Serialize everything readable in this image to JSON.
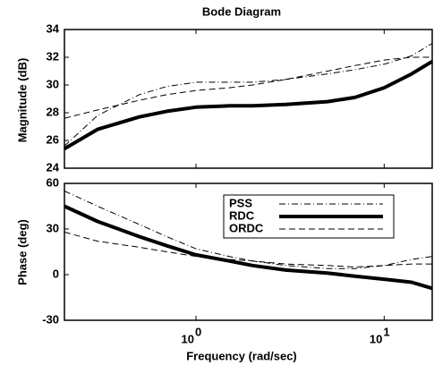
{
  "chart_data": [
    {
      "type": "line",
      "title": "Bode Diagram",
      "ylabel": "Magnitude (dB)",
      "xscale": "log",
      "x": [
        0.2,
        0.3,
        0.5,
        0.7,
        1,
        1.5,
        2,
        3,
        5,
        7,
        10,
        14,
        18
      ],
      "xlim": [
        0.2,
        18
      ],
      "xticks": [
        1,
        10
      ],
      "ylim": [
        24,
        34
      ],
      "yticks": [
        24,
        26,
        28,
        30,
        32,
        34
      ],
      "series": [
        {
          "name": "PSS",
          "color": "#000000",
          "style": "dash-dot",
          "values": [
            25.6,
            27.8,
            29.3,
            29.9,
            30.2,
            30.2,
            30.2,
            30.4,
            30.8,
            31.1,
            31.5,
            32.1,
            33.0
          ]
        },
        {
          "name": "RDC",
          "color": "#000000",
          "style": "solid-thick",
          "values": [
            25.4,
            26.8,
            27.7,
            28.1,
            28.4,
            28.5,
            28.5,
            28.6,
            28.8,
            29.1,
            29.8,
            30.8,
            31.7
          ]
        },
        {
          "name": "ORDC",
          "color": "#000000",
          "style": "dashed",
          "values": [
            27.6,
            28.2,
            28.9,
            29.3,
            29.6,
            29.8,
            30.0,
            30.4,
            31.0,
            31.4,
            31.8,
            32.0,
            32.0
          ]
        }
      ]
    },
    {
      "type": "line",
      "ylabel": "Phase (deg)",
      "xlabel": "Frequency (rad/sec)",
      "xscale": "log",
      "x": [
        0.2,
        0.3,
        0.5,
        0.7,
        1,
        1.5,
        2,
        3,
        5,
        7,
        10,
        14,
        18
      ],
      "xlim": [
        0.2,
        18
      ],
      "xticks": [
        {
          "value": 1,
          "label": "10",
          "exponent": "0"
        },
        {
          "value": 10,
          "label": "10",
          "exponent": "1"
        }
      ],
      "ylim": [
        -30,
        60
      ],
      "yticks": [
        -30,
        0,
        30,
        60
      ],
      "legend": "upper right",
      "series": [
        {
          "name": "PSS",
          "color": "#000000",
          "style": "dash-dot",
          "values": [
            55,
            45,
            33,
            25,
            17,
            12,
            9,
            6,
            4,
            4,
            6,
            10,
            12
          ]
        },
        {
          "name": "RDC",
          "color": "#000000",
          "style": "solid-thick",
          "values": [
            45,
            35,
            25,
            19,
            13,
            9,
            6,
            3,
            1,
            -1,
            -3,
            -5,
            -9
          ]
        },
        {
          "name": "ORDC",
          "color": "#000000",
          "style": "dashed",
          "values": [
            28,
            22,
            18,
            15,
            12,
            10,
            9,
            7,
            6,
            5,
            6,
            7,
            7
          ]
        }
      ]
    }
  ]
}
